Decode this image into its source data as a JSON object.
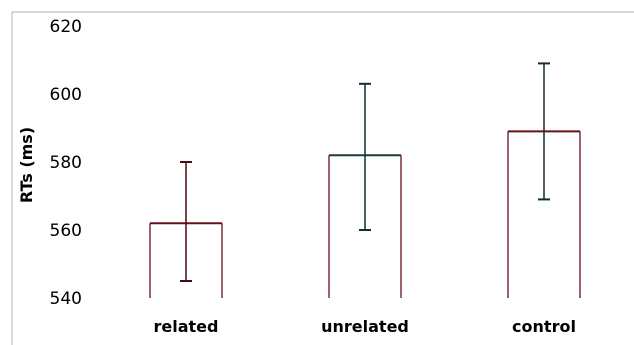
{
  "chart_data": {
    "type": "bar",
    "title": "",
    "xlabel": "",
    "ylabel": "RTs (ms)",
    "categories": [
      "related",
      "unrelated",
      "control"
    ],
    "values": [
      562,
      582,
      589
    ],
    "error_bars": [
      {
        "low": 545,
        "high": 580
      },
      {
        "low": 560,
        "high": 603
      },
      {
        "low": 569,
        "high": 609
      }
    ],
    "ylim": [
      540,
      620
    ],
    "yticks": [
      540,
      560,
      580,
      600,
      620
    ],
    "grid": false,
    "legend": "none",
    "colors": {
      "bar_fill": "#ffffff",
      "bar_top": [
        "#6b0f1a",
        "#1e3a3a",
        "#6b0f1a"
      ],
      "bar_sides": [
        "#6b0f1a",
        "#6b0f1a",
        "#6b0f1a"
      ],
      "error_bar": [
        "#4a0a14",
        "#0f2e33",
        "#0f2e33"
      ]
    }
  }
}
